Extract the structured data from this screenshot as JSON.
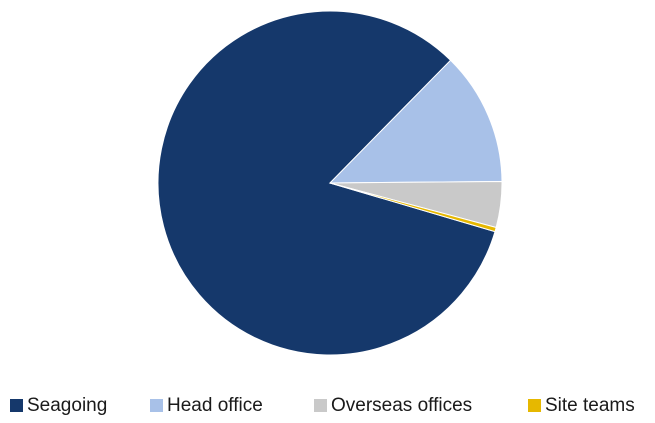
{
  "chart_data": {
    "type": "pie",
    "title": "",
    "legend_position": "bottom",
    "start_angle_deg": 0,
    "direction": "clockwise",
    "series": [
      {
        "name": "Seagoing",
        "value": 82.8,
        "color": "#15386b"
      },
      {
        "name": "Head office",
        "value": 12.5,
        "color": "#a8c1e8"
      },
      {
        "name": "Overseas offices",
        "value": 4.3,
        "color": "#c9c9c9"
      },
      {
        "name": "Site teams",
        "value": 0.4,
        "color": "#e6b800"
      }
    ]
  }
}
